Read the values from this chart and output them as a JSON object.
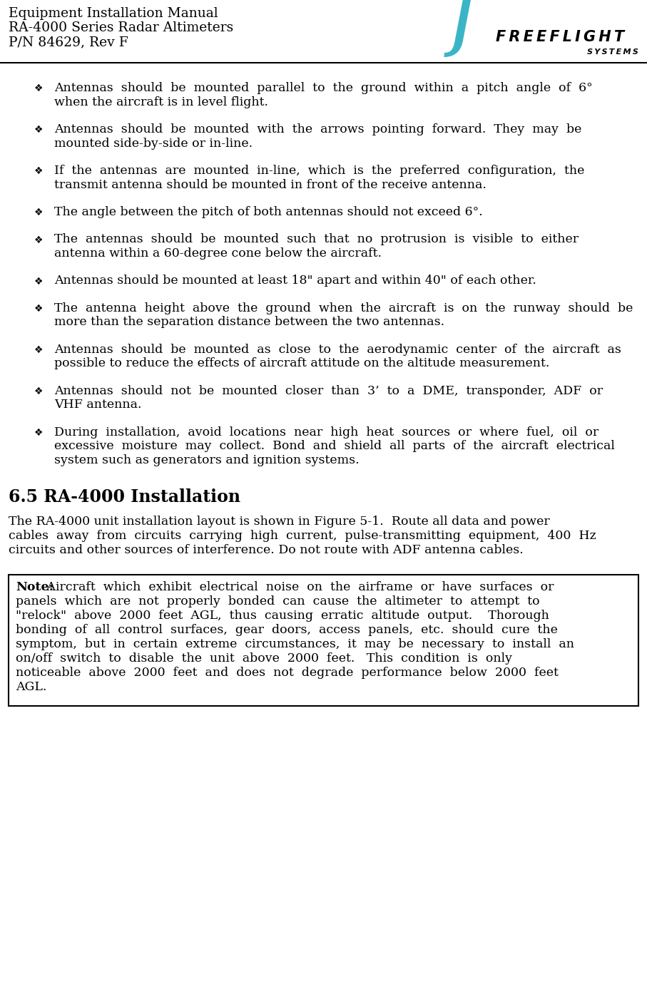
{
  "header_line1": "Equipment Installation Manual",
  "header_line2": "RA-4000 Series Radar Altimeters",
  "header_line3": "P/N 84629, Rev F",
  "logo_color": "#3ab5c6",
  "bullet_items": [
    "Antennas  should  be  mounted  parallel  to  the  ground  within  a  pitch  angle  of  6°\nwhen the aircraft is in level flight.",
    "Antennas  should  be  mounted  with  the  arrows  pointing  forward.  They  may  be\nmounted side-by-side or in-line.",
    "If  the  antennas  are  mounted  in-line,  which  is  the  preferred  configuration,  the\ntransmit antenna should be mounted in front of the receive antenna.",
    "The angle between the pitch of both antennas should not exceed 6°.",
    "The  antennas  should  be  mounted  such  that  no  protrusion  is  visible  to  either\nantenna within a 60-degree cone below the aircraft.",
    "Antennas should be mounted at least 18\" apart and within 40\" of each other.",
    "The  antenna  height  above  the  ground  when  the  aircraft  is  on  the  runway  should  be\nmore than the separation distance between the two antennas.",
    "Antennas  should  be  mounted  as  close  to  the  aerodynamic  center  of  the  aircraft  as\npossible to reduce the effects of aircraft attitude on the altitude measurement.",
    "Antennas  should  not  be  mounted  closer  than  3’  to  a  DME,  transponder,  ADF  or\nVHF antenna.",
    "During  installation,  avoid  locations  near  high  heat  sources  or  where  fuel,  oil  or\nexcessive  moisture  may  collect.  Bond  and  shield  all  parts  of  the  aircraft  electrical\nsystem such as generators and ignition systems."
  ],
  "bullet_lines": [
    2,
    2,
    2,
    1,
    2,
    1,
    2,
    2,
    2,
    3
  ],
  "section_title": "6.5 RA-4000 Installation",
  "section_body_lines": [
    "The RA-4000 unit installation layout is shown in Figure 5-1.  Route all data and power",
    "cables  away  from  circuits  carrying  high  current,  pulse-transmitting  equipment,  400  Hz",
    "circuits and other sources of interference. Do not route with ADF antenna cables."
  ],
  "note_label": "Note:",
  "note_body_lines": [
    " Aircraft  which  exhibit  electrical  noise  on  the  airframe  or  have  surfaces  or",
    "panels  which  are  not  properly  bonded  can  cause  the  altimeter  to  attempt  to",
    "\"relock\"  above  2000  feet  AGL,  thus  causing  erratic  altitude  output.    Thorough",
    "bonding  of  all  control  surfaces,  gear  doors,  access  panels,  etc.  should  cure  the",
    "symptom,  but  in  certain  extreme  circumstances,  it  may  be  necessary  to  install  an",
    "on/off  switch  to  disable  the  unit  above  2000  feet.   This  condition  is  only",
    "noticeable  above  2000  feet  and  does  not  degrade  performance  below  2000  feet",
    "AGL."
  ],
  "bg_color": "#ffffff",
  "text_color": "#000000"
}
